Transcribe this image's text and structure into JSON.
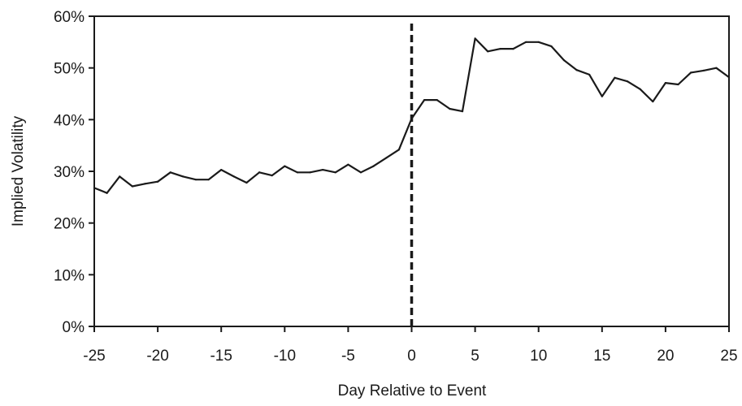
{
  "chart_data": {
    "type": "line",
    "title": "",
    "xlabel": "Day Relative to Event",
    "ylabel": "Implied Volatility",
    "xlim": [
      -25,
      25
    ],
    "ylim": [
      0,
      60
    ],
    "x_ticks": [
      -25,
      -20,
      -15,
      -10,
      -5,
      0,
      5,
      10,
      15,
      20,
      25
    ],
    "x_tick_labels": [
      "-25",
      "-20",
      "-15",
      "-10",
      "-5",
      "0",
      "5",
      "10",
      "15",
      "20",
      "25"
    ],
    "y_ticks": [
      0,
      10,
      20,
      30,
      40,
      50,
      60
    ],
    "y_tick_labels": [
      "0%",
      "10%",
      "20%",
      "30%",
      "40%",
      "50%",
      "60%"
    ],
    "grid": false,
    "legend": "none",
    "event_marker": {
      "x": 0,
      "style": "dashed"
    },
    "series": [
      {
        "color": "#1a1a1a",
        "x": [
          -25,
          -24,
          -23,
          -22,
          -21,
          -20,
          -19,
          -18,
          -17,
          -16,
          -15,
          -14,
          -13,
          -12,
          -11,
          -10,
          -9,
          -8,
          -7,
          -6,
          -5,
          -4,
          -3,
          -2,
          -1,
          0,
          1,
          2,
          3,
          4,
          5,
          6,
          7,
          8,
          9,
          10,
          11,
          12,
          13,
          14,
          15,
          16,
          17,
          18,
          19,
          20,
          21,
          22,
          23,
          24,
          25
        ],
        "values": [
          26.8,
          25.8,
          29,
          27.1,
          27.6,
          28,
          29.8,
          29,
          28.4,
          28.4,
          30.3,
          29,
          27.8,
          29.8,
          29.2,
          31,
          29.8,
          29.8,
          30.3,
          29.8,
          31.3,
          29.8,
          31,
          32.6,
          34.2,
          40.2,
          43.8,
          43.8,
          42.1,
          41.6,
          55.7,
          53.2,
          53.7,
          53.7,
          55,
          55,
          54.2,
          51.5,
          49.6,
          48.7,
          44.5,
          48.1,
          47.4,
          45.9,
          43.5,
          47.1,
          46.8,
          49.1,
          49.5,
          50,
          48.2
        ]
      }
    ]
  }
}
